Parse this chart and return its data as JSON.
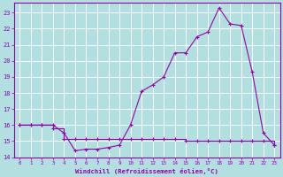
{
  "xlabel": "Windchill (Refroidissement éolien,°C)",
  "xlim": [
    -0.5,
    23.5
  ],
  "ylim": [
    14,
    23.6
  ],
  "yticks": [
    14,
    15,
    16,
    17,
    18,
    19,
    20,
    21,
    22,
    23
  ],
  "xticks": [
    0,
    1,
    2,
    3,
    4,
    5,
    6,
    7,
    8,
    9,
    10,
    11,
    12,
    13,
    14,
    15,
    16,
    17,
    18,
    19,
    20,
    21,
    22,
    23
  ],
  "bg_color": "#b2dfdf",
  "grid_color": "#ffffff",
  "line_color": "#9900aa",
  "line1_x": [
    0,
    1,
    2,
    3,
    4,
    5,
    6,
    7,
    8,
    9,
    10,
    11,
    12,
    13,
    14,
    15,
    16,
    17,
    18,
    19,
    20,
    21,
    22,
    23
  ],
  "line1_y": [
    16.0,
    16.0,
    16.0,
    16.0,
    15.5,
    14.4,
    14.5,
    14.5,
    14.6,
    14.75,
    16.0,
    18.1,
    18.5,
    19.0,
    20.5,
    20.5,
    21.5,
    21.8,
    23.3,
    22.3,
    22.2,
    19.3,
    15.5,
    14.75
  ],
  "line2_x": [
    0,
    1,
    2,
    3,
    4,
    5,
    6,
    7,
    8,
    9,
    10,
    11,
    12,
    13,
    14,
    15,
    16,
    17,
    18,
    19,
    20,
    21,
    22,
    23
  ],
  "line2_y": [
    16.0,
    16.0,
    16.0,
    15.8,
    15.15,
    15.15,
    15.15,
    15.15,
    15.15,
    15.15,
    15.15,
    15.15,
    15.15,
    15.15,
    15.15,
    15.0,
    15.0,
    15.0,
    15.0,
    15.0,
    15.0,
    15.0,
    15.0,
    14.75
  ]
}
